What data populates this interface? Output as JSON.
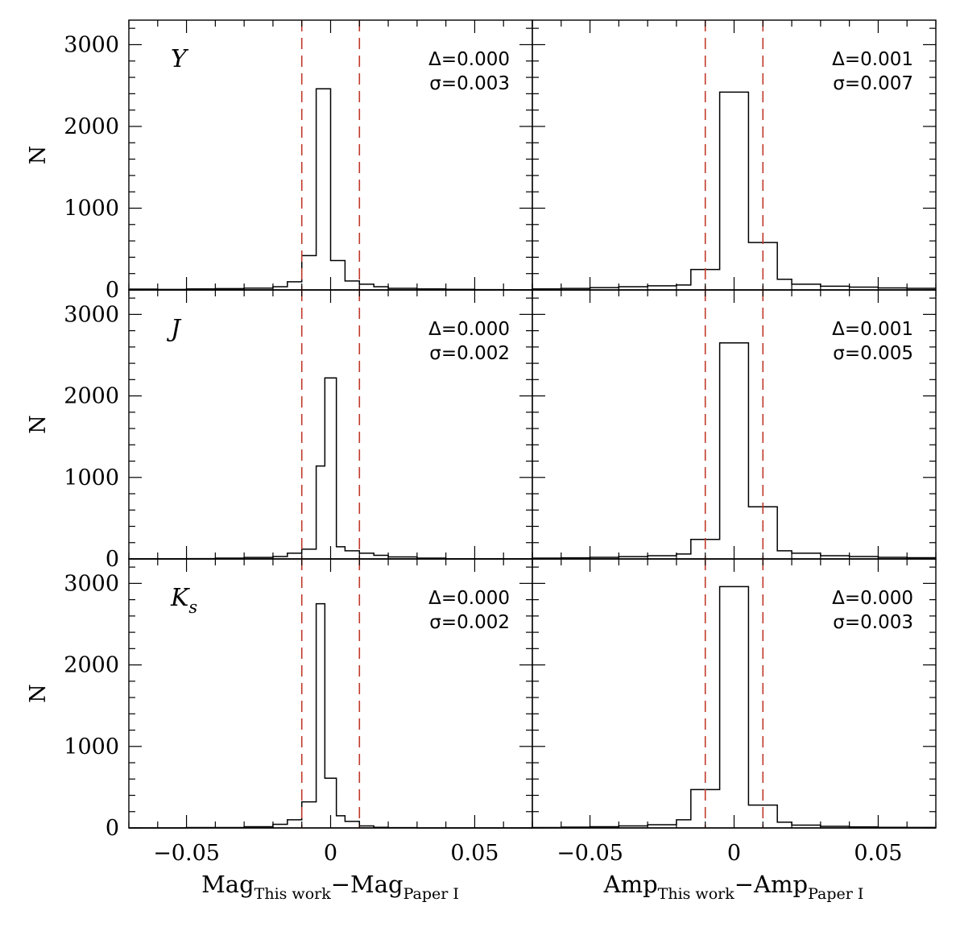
{
  "chart_data": [
    {
      "type": "histogram",
      "row": 0,
      "col": 0,
      "band_label": "Y",
      "stat_delta": "Δ=0.000",
      "stat_sigma": "σ=0.003",
      "bins": [
        {
          "x0": -0.07,
          "x1": -0.06,
          "n": 10
        },
        {
          "x0": -0.06,
          "x1": -0.05,
          "n": 6
        },
        {
          "x0": -0.05,
          "x1": -0.04,
          "n": 12
        },
        {
          "x0": -0.04,
          "x1": -0.03,
          "n": 16
        },
        {
          "x0": -0.03,
          "x1": -0.02,
          "n": 22
        },
        {
          "x0": -0.02,
          "x1": -0.015,
          "n": 40
        },
        {
          "x0": -0.015,
          "x1": -0.01,
          "n": 100
        },
        {
          "x0": -0.01,
          "x1": -0.005,
          "n": 420
        },
        {
          "x0": -0.005,
          "x1": 0.0,
          "n": 2460
        },
        {
          "x0": 0.0,
          "x1": 0.005,
          "n": 360
        },
        {
          "x0": 0.005,
          "x1": 0.01,
          "n": 110
        },
        {
          "x0": 0.01,
          "x1": 0.015,
          "n": 70
        },
        {
          "x0": 0.015,
          "x1": 0.02,
          "n": 40
        },
        {
          "x0": 0.02,
          "x1": 0.03,
          "n": 20
        },
        {
          "x0": 0.03,
          "x1": 0.04,
          "n": 12
        },
        {
          "x0": 0.04,
          "x1": 0.05,
          "n": 8
        },
        {
          "x0": 0.05,
          "x1": 0.06,
          "n": 4
        },
        {
          "x0": 0.06,
          "x1": 0.07,
          "n": 2
        }
      ]
    },
    {
      "type": "histogram",
      "row": 0,
      "col": 1,
      "band_label": "",
      "stat_delta": "Δ=0.001",
      "stat_sigma": "σ=0.007",
      "bins": [
        {
          "x0": -0.07,
          "x1": -0.06,
          "n": 12
        },
        {
          "x0": -0.06,
          "x1": -0.05,
          "n": 18
        },
        {
          "x0": -0.05,
          "x1": -0.04,
          "n": 28
        },
        {
          "x0": -0.04,
          "x1": -0.03,
          "n": 40
        },
        {
          "x0": -0.03,
          "x1": -0.02,
          "n": 50
        },
        {
          "x0": -0.02,
          "x1": -0.015,
          "n": 60
        },
        {
          "x0": -0.015,
          "x1": -0.01,
          "n": 250
        },
        {
          "x0": -0.01,
          "x1": -0.005,
          "n": 250
        },
        {
          "x0": -0.005,
          "x1": 0.005,
          "n": 2420
        },
        {
          "x0": 0.005,
          "x1": 0.015,
          "n": 580
        },
        {
          "x0": 0.015,
          "x1": 0.02,
          "n": 130
        },
        {
          "x0": 0.02,
          "x1": 0.03,
          "n": 70
        },
        {
          "x0": 0.03,
          "x1": 0.04,
          "n": 45
        },
        {
          "x0": 0.04,
          "x1": 0.05,
          "n": 35
        },
        {
          "x0": 0.05,
          "x1": 0.06,
          "n": 25
        },
        {
          "x0": 0.06,
          "x1": 0.07,
          "n": 20
        }
      ]
    },
    {
      "type": "histogram",
      "row": 1,
      "col": 0,
      "band_label": "J",
      "stat_delta": "Δ=0.000",
      "stat_sigma": "σ=0.002",
      "bins": [
        {
          "x0": -0.07,
          "x1": -0.05,
          "n": 2
        },
        {
          "x0": -0.05,
          "x1": -0.04,
          "n": 4
        },
        {
          "x0": -0.04,
          "x1": -0.03,
          "n": 10
        },
        {
          "x0": -0.03,
          "x1": -0.02,
          "n": 18
        },
        {
          "x0": -0.02,
          "x1": -0.015,
          "n": 30
        },
        {
          "x0": -0.015,
          "x1": -0.01,
          "n": 70
        },
        {
          "x0": -0.01,
          "x1": -0.005,
          "n": 120
        },
        {
          "x0": -0.005,
          "x1": -0.002,
          "n": 1140
        },
        {
          "x0": -0.002,
          "x1": 0.002,
          "n": 2220
        },
        {
          "x0": 0.002,
          "x1": 0.005,
          "n": 150
        },
        {
          "x0": 0.005,
          "x1": 0.01,
          "n": 100
        },
        {
          "x0": 0.01,
          "x1": 0.015,
          "n": 70
        },
        {
          "x0": 0.015,
          "x1": 0.02,
          "n": 45
        },
        {
          "x0": 0.02,
          "x1": 0.03,
          "n": 25
        },
        {
          "x0": 0.03,
          "x1": 0.04,
          "n": 10
        },
        {
          "x0": 0.04,
          "x1": 0.07,
          "n": 2
        }
      ]
    },
    {
      "type": "histogram",
      "row": 1,
      "col": 1,
      "band_label": "",
      "stat_delta": "Δ=0.001",
      "stat_sigma": "σ=0.005",
      "bins": [
        {
          "x0": -0.07,
          "x1": -0.06,
          "n": 10
        },
        {
          "x0": -0.06,
          "x1": -0.05,
          "n": 14
        },
        {
          "x0": -0.05,
          "x1": -0.04,
          "n": 20
        },
        {
          "x0": -0.04,
          "x1": -0.03,
          "n": 28
        },
        {
          "x0": -0.03,
          "x1": -0.02,
          "n": 40
        },
        {
          "x0": -0.02,
          "x1": -0.015,
          "n": 60
        },
        {
          "x0": -0.015,
          "x1": -0.01,
          "n": 240
        },
        {
          "x0": -0.01,
          "x1": -0.005,
          "n": 240
        },
        {
          "x0": -0.005,
          "x1": 0.005,
          "n": 2650
        },
        {
          "x0": 0.005,
          "x1": 0.015,
          "n": 640
        },
        {
          "x0": 0.015,
          "x1": 0.02,
          "n": 100
        },
        {
          "x0": 0.02,
          "x1": 0.03,
          "n": 70
        },
        {
          "x0": 0.03,
          "x1": 0.04,
          "n": 40
        },
        {
          "x0": 0.04,
          "x1": 0.05,
          "n": 30
        },
        {
          "x0": 0.05,
          "x1": 0.06,
          "n": 20
        },
        {
          "x0": 0.06,
          "x1": 0.07,
          "n": 15
        }
      ]
    },
    {
      "type": "histogram",
      "row": 2,
      "col": 0,
      "band_label": "Ks",
      "stat_delta": "Δ=0.000",
      "stat_sigma": "σ=0.002",
      "bins": [
        {
          "x0": -0.07,
          "x1": -0.05,
          "n": 0
        },
        {
          "x0": -0.05,
          "x1": -0.04,
          "n": 5
        },
        {
          "x0": -0.04,
          "x1": -0.03,
          "n": 5
        },
        {
          "x0": -0.03,
          "x1": -0.02,
          "n": 15
        },
        {
          "x0": -0.02,
          "x1": -0.015,
          "n": 45
        },
        {
          "x0": -0.015,
          "x1": -0.01,
          "n": 100
        },
        {
          "x0": -0.01,
          "x1": -0.005,
          "n": 320
        },
        {
          "x0": -0.005,
          "x1": -0.002,
          "n": 2750
        },
        {
          "x0": -0.002,
          "x1": 0.002,
          "n": 610
        },
        {
          "x0": 0.002,
          "x1": 0.005,
          "n": 150
        },
        {
          "x0": 0.005,
          "x1": 0.01,
          "n": 80
        },
        {
          "x0": 0.01,
          "x1": 0.015,
          "n": 25
        },
        {
          "x0": 0.015,
          "x1": 0.02,
          "n": 8
        },
        {
          "x0": 0.02,
          "x1": 0.03,
          "n": 4
        },
        {
          "x0": 0.03,
          "x1": 0.07,
          "n": 0
        }
      ]
    },
    {
      "type": "histogram",
      "row": 2,
      "col": 1,
      "band_label": "",
      "stat_delta": "Δ=0.000",
      "stat_sigma": "σ=0.003",
      "bins": [
        {
          "x0": -0.07,
          "x1": -0.06,
          "n": 5
        },
        {
          "x0": -0.06,
          "x1": -0.05,
          "n": 10
        },
        {
          "x0": -0.05,
          "x1": -0.04,
          "n": 15
        },
        {
          "x0": -0.04,
          "x1": -0.03,
          "n": 25
        },
        {
          "x0": -0.03,
          "x1": -0.02,
          "n": 40
        },
        {
          "x0": -0.02,
          "x1": -0.015,
          "n": 100
        },
        {
          "x0": -0.015,
          "x1": -0.01,
          "n": 470
        },
        {
          "x0": -0.01,
          "x1": -0.005,
          "n": 470
        },
        {
          "x0": -0.005,
          "x1": 0.005,
          "n": 2960
        },
        {
          "x0": 0.005,
          "x1": 0.015,
          "n": 280
        },
        {
          "x0": 0.015,
          "x1": 0.02,
          "n": 70
        },
        {
          "x0": 0.02,
          "x1": 0.03,
          "n": 35
        },
        {
          "x0": 0.03,
          "x1": 0.04,
          "n": 20
        },
        {
          "x0": 0.04,
          "x1": 0.05,
          "n": 12
        },
        {
          "x0": 0.05,
          "x1": 0.06,
          "n": 8
        },
        {
          "x0": 0.06,
          "x1": 0.07,
          "n": 6
        }
      ]
    }
  ],
  "axes": {
    "xlim": [
      -0.07,
      0.07
    ],
    "ylim": [
      0,
      3300
    ],
    "x_major_ticks": [
      -0.05,
      0,
      0.05
    ],
    "x_tick_labels": [
      "−0.05",
      "0",
      "0.05"
    ],
    "y_major_ticks": [
      0,
      1000,
      2000,
      3000
    ],
    "y_tick_labels": [
      "0",
      "1000",
      "2000",
      "3000"
    ],
    "ylabel": "N",
    "xlabel_left": {
      "main1": "Mag",
      "sub1": "This work",
      "minus": "−",
      "main2": "Mag",
      "sub2": "Paper I"
    },
    "xlabel_right": {
      "main1": "Amp",
      "sub1": "This work",
      "minus": "−",
      "main2": "Amp",
      "sub2": "Paper I"
    },
    "cut_lines": [
      -0.01,
      0.01
    ],
    "cut_line_color": "#c0392b",
    "subscript_s": "s"
  }
}
